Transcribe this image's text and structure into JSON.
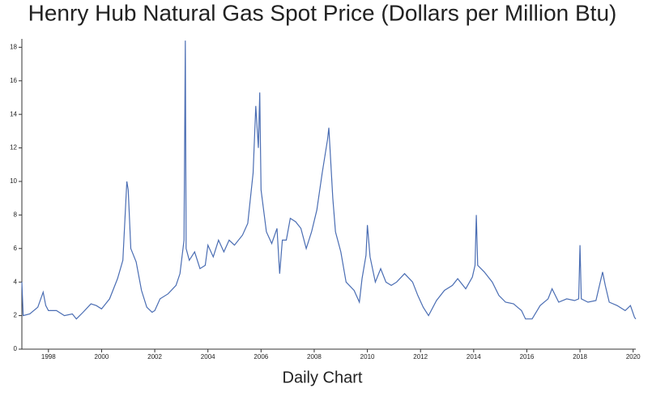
{
  "chart_data": {
    "type": "line",
    "title": "Henry Hub Natural Gas Spot Price (Dollars per Million Btu)",
    "x_label": "Daily Chart",
    "x": [
      1997.0,
      1997.05,
      1997.3,
      1997.6,
      1997.8,
      1997.9,
      1998.0,
      1998.3,
      1998.6,
      1998.9,
      1999.05,
      1999.3,
      1999.6,
      1999.8,
      2000.0,
      2000.3,
      2000.6,
      2000.8,
      2000.95,
      2001.0,
      2001.1,
      2001.3,
      2001.5,
      2001.7,
      2001.9,
      2002.0,
      2002.2,
      2002.5,
      2002.8,
      2002.95,
      2003.1,
      2003.15,
      2003.18,
      2003.3,
      2003.5,
      2003.7,
      2003.9,
      2004.0,
      2004.2,
      2004.4,
      2004.6,
      2004.8,
      2005.0,
      2005.3,
      2005.5,
      2005.7,
      2005.8,
      2005.9,
      2005.95,
      2006.0,
      2006.2,
      2006.4,
      2006.6,
      2006.7,
      2006.8,
      2006.95,
      2007.1,
      2007.3,
      2007.5,
      2007.7,
      2007.9,
      2008.1,
      2008.3,
      2008.5,
      2008.55,
      2008.7,
      2008.8,
      2009.0,
      2009.2,
      2009.5,
      2009.7,
      2009.8,
      2009.95,
      2010.0,
      2010.1,
      2010.3,
      2010.5,
      2010.7,
      2010.9,
      2011.1,
      2011.4,
      2011.7,
      2011.9,
      2012.1,
      2012.3,
      2012.6,
      2012.9,
      2013.2,
      2013.4,
      2013.7,
      2013.95,
      2014.05,
      2014.1,
      2014.15,
      2014.4,
      2014.7,
      2014.95,
      2015.2,
      2015.5,
      2015.8,
      2015.95,
      2016.2,
      2016.5,
      2016.8,
      2016.95,
      2017.2,
      2017.5,
      2017.8,
      2017.95,
      2018.0,
      2018.05,
      2018.3,
      2018.6,
      2018.85,
      2018.95,
      2019.1,
      2019.4,
      2019.7,
      2019.9,
      2020.05,
      2020.1
    ],
    "series": [
      {
        "name": "Henry Hub",
        "color": "#4a6db3",
        "values": [
          4.0,
          2.0,
          2.1,
          2.5,
          3.4,
          2.6,
          2.3,
          2.3,
          2.0,
          2.1,
          1.8,
          2.2,
          2.7,
          2.6,
          2.4,
          3.0,
          4.2,
          5.3,
          10.0,
          9.5,
          6.0,
          5.2,
          3.5,
          2.5,
          2.2,
          2.3,
          3.0,
          3.3,
          3.8,
          4.5,
          6.5,
          18.4,
          6.0,
          5.3,
          5.8,
          4.8,
          5.0,
          6.2,
          5.5,
          6.5,
          5.8,
          6.5,
          6.2,
          6.8,
          7.5,
          10.5,
          14.5,
          12.0,
          15.3,
          9.5,
          7.0,
          6.3,
          7.2,
          4.5,
          6.5,
          6.5,
          7.8,
          7.6,
          7.2,
          6.0,
          7.0,
          8.3,
          10.5,
          12.5,
          13.2,
          9.0,
          7.0,
          5.8,
          4.0,
          3.5,
          2.8,
          4.2,
          5.6,
          7.4,
          5.5,
          4.0,
          4.8,
          4.0,
          3.8,
          4.0,
          4.5,
          4.0,
          3.2,
          2.5,
          2.0,
          2.9,
          3.5,
          3.8,
          4.2,
          3.6,
          4.3,
          5.0,
          8.0,
          5.0,
          4.6,
          4.0,
          3.2,
          2.8,
          2.7,
          2.3,
          1.8,
          1.8,
          2.6,
          3.0,
          3.6,
          2.8,
          3.0,
          2.9,
          3.0,
          6.2,
          3.0,
          2.8,
          2.9,
          4.6,
          3.8,
          2.8,
          2.6,
          2.3,
          2.6,
          1.9,
          1.8
        ]
      }
    ],
    "xlim": [
      1997.0,
      2020.1
    ],
    "xticks": [
      1998,
      2000,
      2002,
      2004,
      2006,
      2008,
      2010,
      2012,
      2014,
      2016,
      2018,
      2020
    ],
    "ylim": [
      0,
      18.5
    ],
    "yticks": [
      0,
      2,
      4,
      6,
      8,
      10,
      12,
      14,
      16,
      18
    ]
  }
}
